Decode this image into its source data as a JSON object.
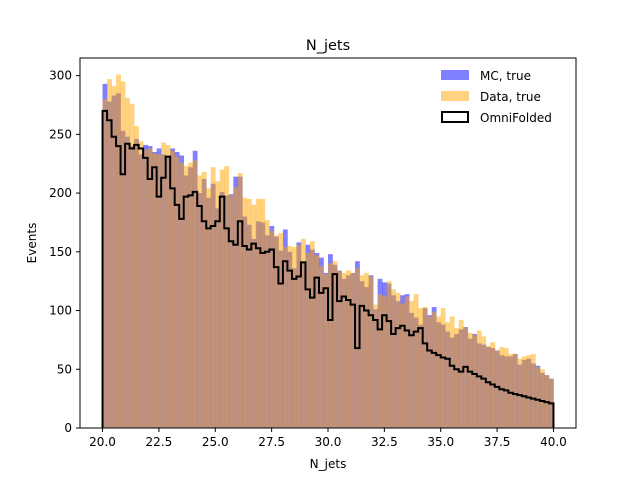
{
  "chart_data": {
    "type": "histogram",
    "title": "N_jets",
    "xlabel": "N_jets",
    "ylabel": "Events",
    "xlim": [
      19.0,
      41.0
    ],
    "ylim": [
      0,
      315
    ],
    "xticks": [
      20.0,
      22.5,
      25.0,
      27.5,
      30.0,
      32.5,
      35.0,
      37.5,
      40.0
    ],
    "xtick_labels": [
      "20.0",
      "22.5",
      "25.0",
      "27.5",
      "30.0",
      "32.5",
      "35.0",
      "37.5",
      "40.0"
    ],
    "yticks": [
      0,
      50,
      100,
      150,
      200,
      250,
      300
    ],
    "ytick_labels": [
      "0",
      "50",
      "100",
      "150",
      "200",
      "250",
      "300"
    ],
    "bins": {
      "start": 20.0,
      "end": 40.0,
      "count": 100
    },
    "grid": false,
    "legend_position": "top-right",
    "series": [
      {
        "name": "MC, true",
        "style": "filled",
        "color": "#0000ff",
        "opacity": 0.5,
        "values": [
          293,
          278,
          283,
          285,
          253,
          248,
          240,
          246,
          233,
          241,
          240,
          235,
          238,
          233,
          231,
          238,
          235,
          232,
          215,
          222,
          236,
          200,
          212,
          196,
          208,
          187,
          201,
          198,
          199,
          214,
          214,
          180,
          173,
          161,
          176,
          175,
          164,
          172,
          163,
          151,
          169,
          150,
          136,
          158,
          142,
          156,
          152,
          149,
          145,
          132,
          148,
          139,
          134,
          127,
          130,
          132,
          142,
          125,
          120,
          130,
          101,
          127,
          124,
          123,
          113,
          108,
          113,
          114,
          98,
          94,
          88,
          102,
          96,
          103,
          90,
          88,
          82,
          77,
          80,
          84,
          86,
          76,
          80,
          72,
          71,
          69,
          68,
          66,
          62,
          61,
          61,
          63,
          54,
          58,
          59,
          55,
          53,
          47,
          45,
          42
        ]
      },
      {
        "name": "Data, true",
        "style": "filled",
        "color": "#ffa500",
        "opacity": 0.5,
        "values": [
          280,
          297,
          291,
          301,
          295,
          281,
          276,
          257,
          244,
          237,
          238,
          234,
          233,
          243,
          241,
          236,
          231,
          226,
          223,
          226,
          228,
          215,
          218,
          204,
          222,
          210,
          220,
          223,
          198,
          205,
          217,
          196,
          195,
          190,
          195,
          195,
          177,
          168,
          164,
          166,
          154,
          155,
          154,
          156,
          161,
          149,
          159,
          147,
          138,
          131,
          140,
          142,
          134,
          132,
          134,
          132,
          136,
          130,
          132,
          129,
          105,
          114,
          112,
          125,
          118,
          115,
          106,
          112,
          108,
          114,
          102,
          103,
          95,
          99,
          95,
          102,
          90,
          95,
          85,
          92,
          86,
          81,
          79,
          83,
          78,
          70,
          73,
          66,
          69,
          68,
          63,
          63,
          59,
          61,
          62,
          63,
          52,
          50,
          45,
          42
        ]
      },
      {
        "name": "OmniFolded",
        "style": "step",
        "color": "#000000",
        "values": [
          270,
          262,
          248,
          240,
          216,
          242,
          238,
          241,
          238,
          230,
          212,
          222,
          197,
          213,
          231,
          204,
          190,
          178,
          197,
          198,
          201,
          189,
          176,
          170,
          172,
          176,
          197,
          170,
          159,
          156,
          176,
          155,
          152,
          157,
          153,
          149,
          150,
          152,
          137,
          123,
          142,
          134,
          127,
          129,
          141,
          118,
          111,
          128,
          115,
          119,
          92,
          131,
          108,
          112,
          109,
          105,
          68,
          104,
          100,
          96,
          92,
          84,
          96,
          91,
          80,
          85,
          87,
          83,
          79,
          82,
          85,
          72,
          66,
          64,
          62,
          60,
          59,
          53,
          50,
          48,
          52,
          48,
          46,
          44,
          42,
          39,
          37,
          35,
          33,
          32,
          30,
          29,
          28,
          27,
          26,
          25,
          24,
          23,
          22,
          21
        ]
      }
    ]
  }
}
